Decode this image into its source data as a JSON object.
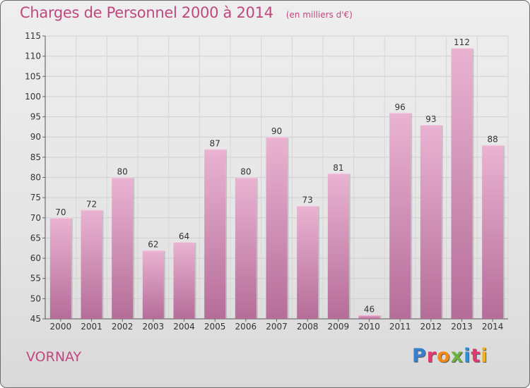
{
  "header": {
    "title": "Charges de Personnel 2000 à 2014",
    "subtitle": "(en milliers d'€)"
  },
  "footer": {
    "town": "VORNAY",
    "logo_letters": [
      "P",
      "r",
      "o",
      "x",
      "i",
      "t",
      "i"
    ]
  },
  "colors": {
    "title": "#c0487e",
    "bar_light": "#eab3d2",
    "bar_dark": "#b56d98",
    "logo": [
      "#3a7fcf",
      "#e23a6f",
      "#f08a1c",
      "#6cb33f",
      "#2f8fd6",
      "#e23a6f",
      "#f0b21c"
    ]
  },
  "chart_data": {
    "type": "bar",
    "categories": [
      "2000",
      "2001",
      "2002",
      "2003",
      "2004",
      "2005",
      "2006",
      "2007",
      "2008",
      "2009",
      "2010",
      "2011",
      "2012",
      "2013",
      "2014"
    ],
    "values": [
      70,
      72,
      80,
      62,
      64,
      87,
      80,
      90,
      73,
      81,
      46,
      96,
      93,
      112,
      88
    ],
    "ylim": [
      45,
      115
    ],
    "yticks": [
      45,
      50,
      55,
      60,
      65,
      70,
      75,
      80,
      85,
      90,
      95,
      100,
      105,
      110,
      115
    ],
    "grid": true,
    "data_labels": true
  }
}
